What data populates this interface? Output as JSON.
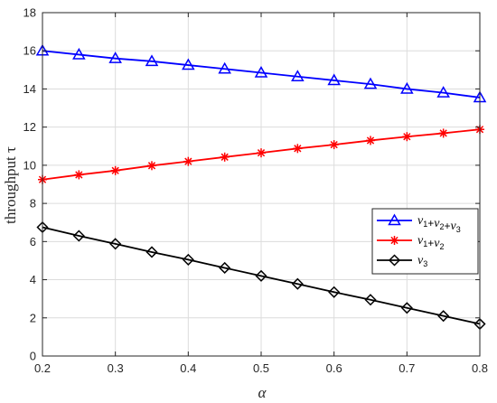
{
  "chart_data": {
    "type": "line",
    "xlabel": "α",
    "ylabel": "throughput τ",
    "xlim": [
      0.2,
      0.8
    ],
    "ylim": [
      0,
      18
    ],
    "xticks": [
      "0.2",
      "0.3",
      "0.4",
      "0.5",
      "0.6",
      "0.7",
      "0.8"
    ],
    "yticks": [
      "0",
      "2",
      "4",
      "6",
      "8",
      "10",
      "12",
      "14",
      "16",
      "18"
    ],
    "grid": true,
    "legend_position": "right-middle",
    "x": [
      0.2,
      0.25,
      0.3,
      0.35,
      0.4,
      0.45,
      0.5,
      0.55,
      0.6,
      0.65,
      0.7,
      0.75,
      0.8
    ],
    "series": [
      {
        "name": "v1+v2+v3",
        "color": "#0000ff",
        "marker": "triangle",
        "values": [
          16.0,
          15.8,
          15.6,
          15.45,
          15.25,
          15.05,
          14.85,
          14.65,
          14.45,
          14.25,
          14.0,
          13.8,
          13.55
        ]
      },
      {
        "name": "v1+v2",
        "color": "#ff0000",
        "marker": "asterisk",
        "values": [
          9.25,
          9.5,
          9.72,
          9.98,
          10.2,
          10.43,
          10.65,
          10.88,
          11.08,
          11.3,
          11.5,
          11.68,
          11.88
        ]
      },
      {
        "name": "v3",
        "color": "#000000",
        "marker": "diamond",
        "values": [
          6.75,
          6.3,
          5.88,
          5.45,
          5.05,
          4.62,
          4.2,
          3.78,
          3.35,
          2.95,
          2.52,
          2.1,
          1.68
        ]
      }
    ]
  }
}
